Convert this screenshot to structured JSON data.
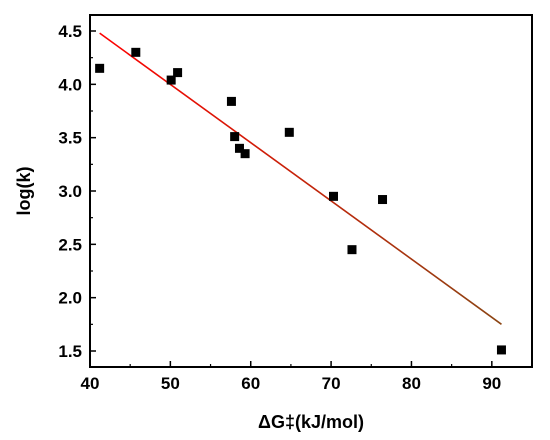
{
  "chart_data": {
    "type": "scatter",
    "xlabel": "ΔG‡(kJ/mol)",
    "ylabel": "log(k)",
    "xlim": [
      40,
      95
    ],
    "ylim": [
      1.35,
      4.65
    ],
    "x_ticks": [
      40,
      50,
      60,
      70,
      80,
      90
    ],
    "y_ticks": [
      1.5,
      2.0,
      2.5,
      3.0,
      3.5,
      4.0,
      4.5
    ],
    "x_tick_labels": [
      "40",
      "50",
      "60",
      "70",
      "80",
      "90"
    ],
    "y_tick_labels": [
      "1.5",
      "2.0",
      "2.5",
      "3.0",
      "3.5",
      "4.0",
      "4.5"
    ],
    "grid": false,
    "points": [
      {
        "x": 41.2,
        "y": 4.15
      },
      {
        "x": 45.7,
        "y": 4.3
      },
      {
        "x": 50.1,
        "y": 4.04
      },
      {
        "x": 50.9,
        "y": 4.11
      },
      {
        "x": 57.6,
        "y": 3.84
      },
      {
        "x": 58.0,
        "y": 3.51
      },
      {
        "x": 58.6,
        "y": 3.4
      },
      {
        "x": 59.3,
        "y": 3.35
      },
      {
        "x": 64.8,
        "y": 3.55
      },
      {
        "x": 70.3,
        "y": 2.95
      },
      {
        "x": 72.6,
        "y": 2.45
      },
      {
        "x": 76.4,
        "y": 2.92
      },
      {
        "x": 91.2,
        "y": 1.51
      }
    ],
    "fit_line": {
      "x": [
        41.2,
        91.2
      ],
      "y": [
        4.48,
        1.75
      ]
    },
    "colors": {
      "points": "#000000",
      "fit_line_start": "#ff0000",
      "fit_line_end": "#8b4513",
      "axes": "#000000"
    }
  }
}
